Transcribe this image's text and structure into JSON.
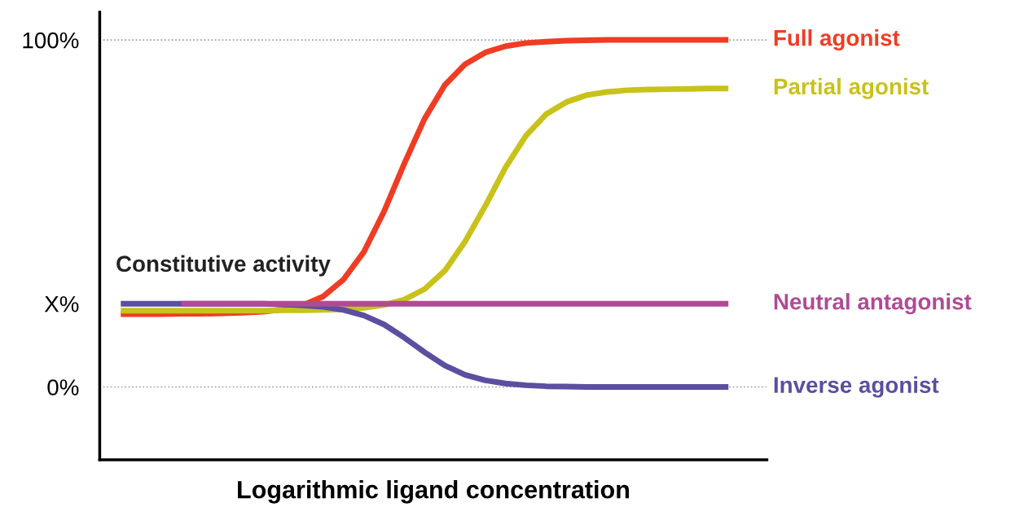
{
  "chart_data": {
    "type": "line",
    "xlabel": "Logarithmic ligand concentration",
    "categories": [
      null,
      null,
      null,
      null,
      null,
      null,
      null,
      null,
      null,
      null,
      null,
      null,
      null,
      null,
      null,
      null,
      null,
      null,
      null,
      null,
      null,
      null,
      null,
      null,
      null,
      null,
      null,
      null,
      null,
      null,
      null
    ],
    "series": [
      {
        "name": "Full agonist",
        "color": "#f03c24",
        "values": [
          21.0,
          21.0,
          21.0,
          21.1,
          21.1,
          21.2,
          21.4,
          21.7,
          22.3,
          23.6,
          26.1,
          31.0,
          38.9,
          50.6,
          64.4,
          77.3,
          87.0,
          93.0,
          96.4,
          98.2,
          99.1,
          99.5,
          99.8,
          99.9,
          100,
          100,
          100,
          100,
          100,
          100,
          100
        ]
      },
      {
        "name": "Partial agonist",
        "color": "#c8c21a",
        "values": [
          22,
          22,
          22,
          22,
          22,
          22,
          22,
          22,
          22.1,
          22.1,
          22.2,
          22.4,
          22.8,
          23.6,
          25.2,
          28.2,
          33.5,
          41.9,
          52.2,
          63.3,
          72.4,
          78.6,
          82.1,
          84.1,
          85.0,
          85.5,
          85.7,
          85.8,
          85.9,
          86,
          86
        ]
      },
      {
        "name": "Inverse agonist",
        "color": "#5a4fa0",
        "values": [
          24,
          24,
          24,
          24,
          24,
          24,
          24,
          24,
          23.8,
          23.5,
          23.1,
          22.2,
          20.6,
          18.0,
          14.2,
          10.0,
          6.2,
          3.5,
          1.9,
          1.0,
          0.5,
          0.2,
          0.1,
          0,
          0,
          0,
          0,
          0,
          0,
          0,
          0
        ]
      },
      {
        "name": "Neutral antagonist",
        "color": "#b04a96",
        "values": [
          null,
          null,
          null,
          24,
          24,
          24,
          24,
          24,
          24,
          24,
          24,
          24,
          24,
          24,
          24,
          24,
          24,
          24,
          24,
          24,
          24,
          24,
          24,
          24,
          24,
          24,
          24,
          24,
          24,
          24,
          24
        ]
      }
    ],
    "ylim": [
      -21,
      108
    ],
    "yticks": [
      {
        "value": 0,
        "label": "0%"
      },
      {
        "value": 24,
        "label": "X%"
      },
      {
        "value": 100,
        "label": "100%"
      }
    ],
    "ref_lines": [
      {
        "axis": "y",
        "value": 0,
        "color": "#9a9a9a",
        "line_style": "dotted"
      },
      {
        "axis": "y",
        "value": 100,
        "color": "#9a9a9a",
        "line_style": "dotted"
      }
    ],
    "annotations": [
      "Constitutive activity"
    ],
    "grid": false,
    "legend": false
  }
}
